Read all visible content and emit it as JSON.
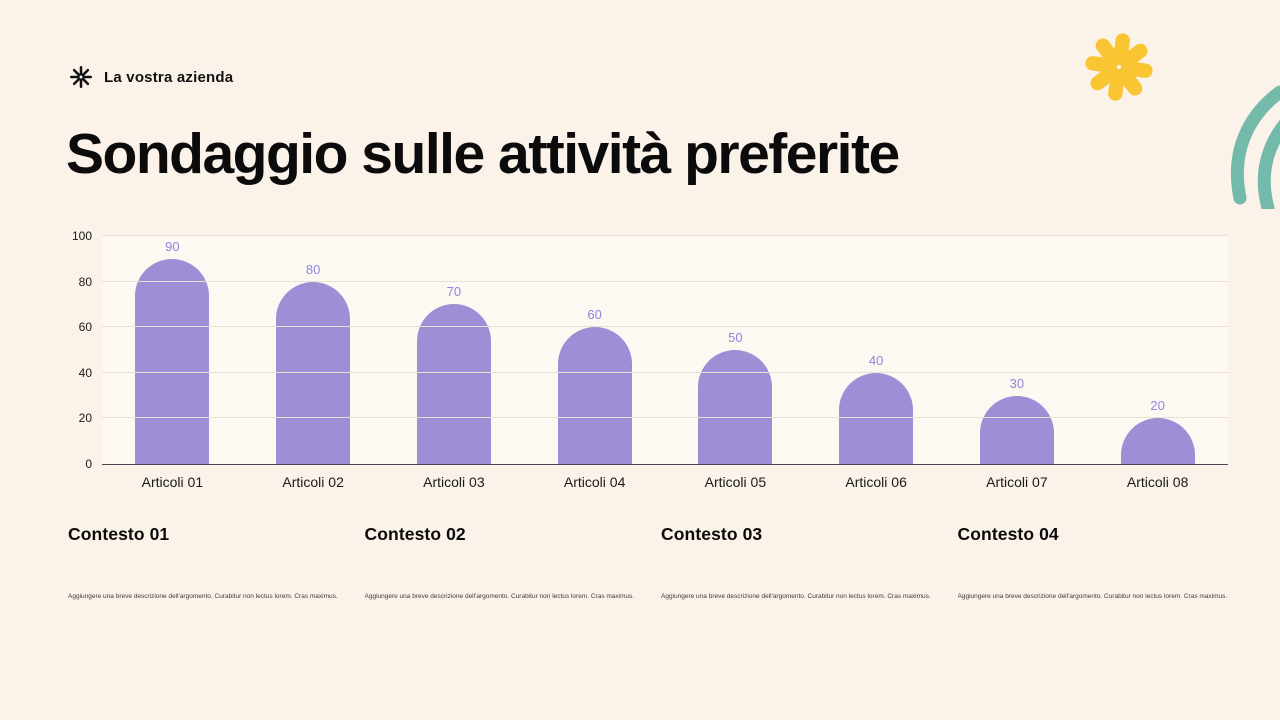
{
  "page": {
    "background": "#FBF2E9"
  },
  "header": {
    "brand": "La vostra azienda",
    "logo_icon": "flower-logo-icon"
  },
  "title": "Sondaggio sulle attività preferite",
  "chart_data": {
    "type": "bar",
    "title": "Sondaggio sulle attività preferite",
    "categories": [
      "Articoli 01",
      "Articoli 02",
      "Articoli 03",
      "Articoli 04",
      "Articoli 05",
      "Articoli 06",
      "Articoli 07",
      "Articoli 08"
    ],
    "values": [
      90,
      80,
      70,
      60,
      50,
      40,
      30,
      20
    ],
    "xlabel": "",
    "ylabel": "",
    "ylim": [
      0,
      100
    ],
    "yticks": [
      0,
      20,
      40,
      60,
      80,
      100
    ],
    "grid": true,
    "legend": "none",
    "bar_color": "#9D8ED6",
    "value_label_color": "#8B87DD"
  },
  "sections": [
    {
      "heading": "Contesto 01",
      "body": "Aggiungere una breve descrizione dell'argomento. Curabitur non lectus lorem. Cras maximus."
    },
    {
      "heading": "Contesto 02",
      "body": "Aggiungere una breve descrizione dell'argomento. Curabitur non lectus lorem. Cras maximus."
    },
    {
      "heading": "Contesto 03",
      "body": "Aggiungere una breve descrizione dell'argomento. Curabitur non lectus lorem. Cras maximus."
    },
    {
      "heading": "Contesto 04",
      "body": "Aggiungere una breve descrizione dell'argomento. Curabitur non lectus lorem. Cras maximus."
    }
  ],
  "decorations": {
    "flower_color": "#F9C533",
    "squiggle_color": "#74BAAB"
  }
}
